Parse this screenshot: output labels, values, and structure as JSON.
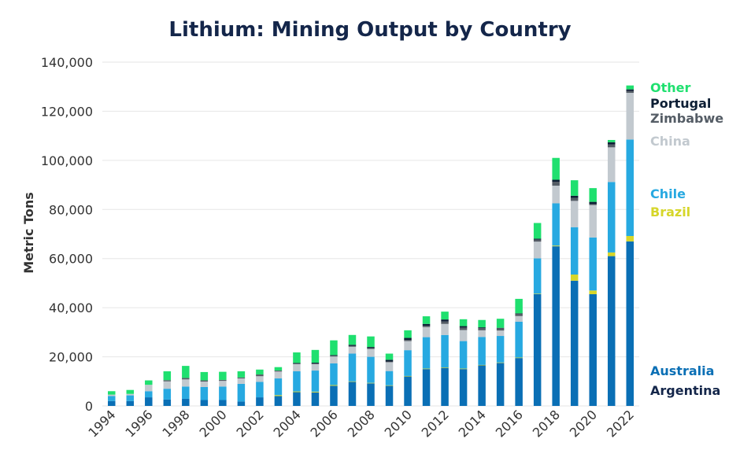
{
  "chart_data": {
    "type": "bar",
    "stacked": true,
    "title": "Lithium: Mining Output by Country",
    "ylabel": "Metric Tons",
    "xlabel": "",
    "ylim": [
      0,
      140000
    ],
    "yticks": [
      0,
      20000,
      40000,
      60000,
      80000,
      100000,
      120000,
      140000
    ],
    "ytick_labels": [
      "0",
      "20,000",
      "40,000",
      "60,000",
      "80,000",
      "100,000",
      "120,000",
      "140,000"
    ],
    "grid": true,
    "legend_placement": "right",
    "categories": [
      "1994",
      "1995",
      "1996",
      "1997",
      "1998",
      "1999",
      "2000",
      "2001",
      "2002",
      "2003",
      "2004",
      "2005",
      "2006",
      "2007",
      "2008",
      "2009",
      "2010",
      "2011",
      "2012",
      "2013",
      "2014",
      "2015",
      "2016",
      "2017",
      "2018",
      "2019",
      "2020",
      "2021",
      "2022"
    ],
    "xtick_labels": [
      "1994",
      "1996",
      "1998",
      "2000",
      "2002",
      "2004",
      "2006",
      "2008",
      "2010",
      "2012",
      "2014",
      "2016",
      "2018",
      "2020",
      "2022"
    ],
    "series": [
      {
        "name": "Argentina",
        "color": "#14264a",
        "values": [
          0,
          0,
          0,
          0,
          0,
          0,
          0,
          0,
          0,
          0,
          0,
          0,
          0,
          0,
          0,
          0,
          0,
          0,
          0,
          0,
          0,
          0,
          0,
          0,
          0,
          0,
          0,
          0,
          0
        ]
      },
      {
        "name": "Australia",
        "color": "#0a6fb5",
        "values": [
          2000,
          2000,
          3500,
          2600,
          2900,
          2400,
          2400,
          1800,
          3500,
          4000,
          5600,
          5500,
          8200,
          9800,
          9200,
          8200,
          12000,
          15000,
          15500,
          15000,
          16500,
          17500,
          19500,
          45500,
          65000,
          51000,
          45500,
          61000,
          67000
        ]
      },
      {
        "name": "Brazil",
        "color": "#d6d62a",
        "values": [
          0,
          0,
          0,
          0,
          0,
          0,
          0,
          0,
          0,
          400,
          300,
          300,
          300,
          200,
          200,
          200,
          200,
          200,
          200,
          200,
          200,
          200,
          200,
          200,
          300,
          2500,
          1500,
          1500,
          2200
        ]
      },
      {
        "name": "Chile",
        "color": "#27a9e1",
        "values": [
          2000,
          2300,
          2500,
          4400,
          5000,
          5300,
          5500,
          7200,
          6300,
          6800,
          8200,
          8600,
          8800,
          11300,
          10600,
          5800,
          10500,
          12800,
          13200,
          11200,
          11400,
          10800,
          14600,
          14400,
          17200,
          19300,
          21600,
          28700,
          39300
        ]
      },
      {
        "name": "China",
        "color": "#c2c9cf",
        "values": [
          600,
          600,
          2600,
          3000,
          2900,
          2200,
          2300,
          2200,
          2300,
          2800,
          2900,
          2600,
          2800,
          2800,
          3200,
          3600,
          3700,
          4100,
          4500,
          4500,
          2700,
          2200,
          2300,
          6800,
          7200,
          10700,
          13200,
          14100,
          19000
        ]
      },
      {
        "name": "Zimbabwe",
        "color": "#555d66",
        "values": [
          0,
          0,
          0,
          500,
          600,
          500,
          400,
          400,
          700,
          400,
          200,
          300,
          300,
          300,
          300,
          300,
          500,
          500,
          1000,
          1000,
          900,
          900,
          900,
          800,
          1600,
          1200,
          400,
          1200,
          800
        ]
      },
      {
        "name": "Portugal",
        "color": "#0d1f35",
        "values": [
          0,
          0,
          0,
          0,
          0,
          0,
          0,
          0,
          0,
          0,
          300,
          300,
          300,
          500,
          500,
          700,
          800,
          800,
          800,
          600,
          300,
          200,
          200,
          400,
          800,
          900,
          900,
          900,
          600
        ]
      },
      {
        "name": "Other",
        "color": "#1fe06f",
        "values": [
          1400,
          1600,
          1800,
          3600,
          4900,
          3400,
          3300,
          2500,
          2000,
          1400,
          4300,
          5200,
          6000,
          4000,
          4300,
          2500,
          3100,
          3100,
          3200,
          2800,
          3000,
          3700,
          5900,
          6400,
          8900,
          6300,
          5600,
          900,
          1600
        ]
      }
    ],
    "legend_entries": [
      {
        "name": "Other",
        "color": "#1fe06f"
      },
      {
        "name": "Portugal",
        "color": "#0d1f35"
      },
      {
        "name": "Zimbabwe",
        "color": "#555d66"
      },
      {
        "name": "China",
        "color": "#c2c9cf"
      },
      {
        "name": "Chile",
        "color": "#27a9e1"
      },
      {
        "name": "Brazil",
        "color": "#d6d62a"
      },
      {
        "name": "Australia",
        "color": "#0a6fb5"
      },
      {
        "name": "Argentina",
        "color": "#14264a"
      }
    ]
  }
}
